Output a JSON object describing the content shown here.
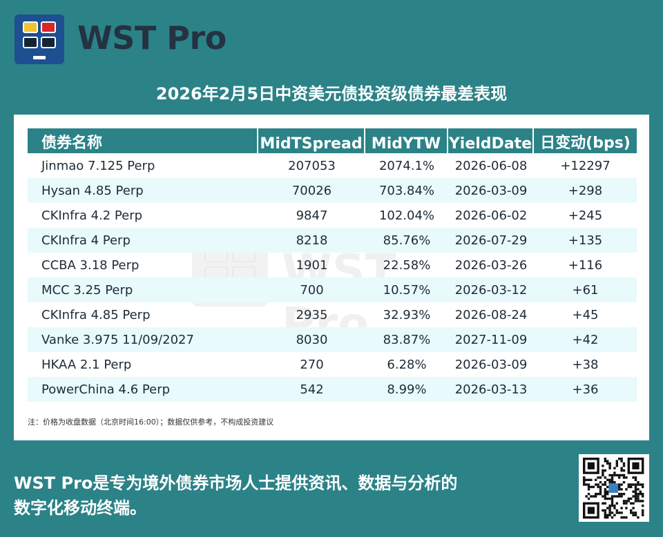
{
  "brand": {
    "name": "WST Pro"
  },
  "title": "2026年2月5日中资美元债投资级债券最差表现",
  "table": {
    "headers": [
      "债券名称",
      "MidTSpread",
      "MidYTW",
      "YieldDate",
      "日变动(bps)"
    ],
    "rows": [
      [
        "Jinmao 7.125 Perp",
        "207053",
        "2074.1%",
        "2026-06-08",
        "+12297"
      ],
      [
        "Hysan 4.85 Perp",
        "70026",
        "703.84%",
        "2026-03-09",
        "+298"
      ],
      [
        "CKInfra 4.2 Perp",
        "9847",
        "102.04%",
        "2026-06-02",
        "+245"
      ],
      [
        "CKInfra 4 Perp",
        "8218",
        "85.76%",
        "2026-07-29",
        "+135"
      ],
      [
        "CCBA 3.18 Perp",
        "1901",
        "22.58%",
        "2026-03-26",
        "+116"
      ],
      [
        "MCC 3.25 Perp",
        "700",
        "10.57%",
        "2026-03-12",
        "+61"
      ],
      [
        "CKInfra 4.85 Perp",
        "2935",
        "32.93%",
        "2026-08-24",
        "+45"
      ],
      [
        "Vanke 3.975 11/09/2027",
        "8030",
        "83.87%",
        "2027-11-09",
        "+42"
      ],
      [
        "HKAA 2.1 Perp",
        "270",
        "6.28%",
        "2026-03-09",
        "+38"
      ],
      [
        "PowerChina 4.6 Perp",
        "542",
        "8.99%",
        "2026-03-13",
        "+36"
      ]
    ]
  },
  "note": "注：价格为收盘数据（北京时间16:00）；数据仅供参考，不构成投资建议",
  "footer": {
    "line1": "WST Pro是专为境外债券市场人士提供资讯、数据与分析的",
    "line2": "数字化移动终端。"
  },
  "colors": {
    "background": "#2b8287",
    "logo_bg": "#1d4f91",
    "row_alt": "#e8fafb"
  },
  "icons": {
    "logo": "wst-logo-icon",
    "qr": "qr-code-icon"
  }
}
